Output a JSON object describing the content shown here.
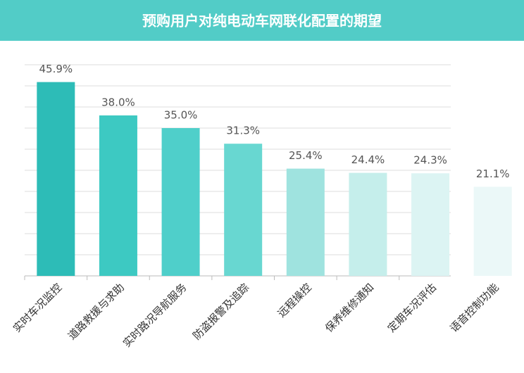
{
  "chart_data": {
    "type": "bar",
    "title": "预购用户对纯电动车网联化配置的期望",
    "categories": [
      "实时车况监控",
      "道路救援与求助",
      "实时路况导航服务",
      "防盗报警及追踪",
      "远程操控",
      "保养维修通知",
      "定期车况评估",
      "语音控制功能"
    ],
    "values": [
      45.9,
      38.0,
      35.0,
      31.3,
      25.4,
      24.4,
      24.3,
      21.1
    ],
    "value_labels": [
      "45.9%",
      "38.0%",
      "35.0%",
      "31.3%",
      "25.4%",
      "24.4%",
      "24.3%",
      "21.1%"
    ],
    "colors": [
      "#2dbcb7",
      "#3dc9c2",
      "#4fcfca",
      "#68d7d1",
      "#9fe3df",
      "#c5eeeb",
      "#dcf4f3",
      "#ebf8f8"
    ],
    "ylim": [
      0,
      50
    ],
    "yticks": [
      0,
      5,
      10,
      15,
      20,
      25,
      30,
      35,
      40,
      45,
      50
    ],
    "grid": true
  }
}
